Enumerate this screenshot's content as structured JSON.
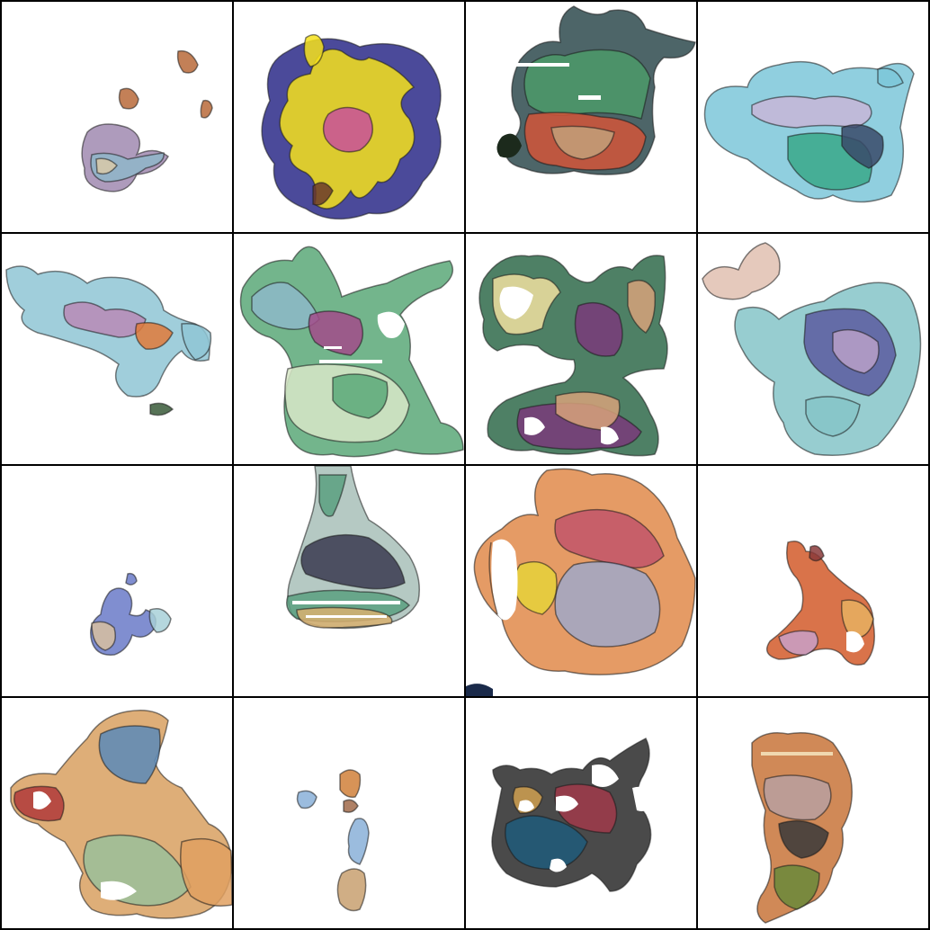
{
  "grid": {
    "rows": 4,
    "cols": 4,
    "background": "#ffffff",
    "divider_color": "#000000"
  },
  "tiles": [
    {
      "palette": [
        "#8fb6c9",
        "#d9c9a8",
        "#a08ab0",
        "#b86a3a"
      ]
    },
    {
      "palette": [
        "#f6e21c",
        "#2b2a88",
        "#c8509a",
        "#6a3a2a"
      ]
    },
    {
      "palette": [
        "#4c9a6a",
        "#d2553a",
        "#c3a07a",
        "#2e4a4e"
      ]
    },
    {
      "palette": [
        "#7cc7d9",
        "#3aa88a",
        "#c8b6d8",
        "#3a4a6a"
      ]
    },
    {
      "palette": [
        "#8fc5d5",
        "#b98ab6",
        "#e07a3a",
        "#3a5a3a"
      ]
    },
    {
      "palette": [
        "#5aa878",
        "#8db8c8",
        "#a24b8a",
        "#d8e8c8"
      ]
    },
    {
      "palette": [
        "#7a3a7a",
        "#2f6a4a",
        "#d7a27a",
        "#f1e0a0"
      ]
    },
    {
      "palette": [
        "#85c4c8",
        "#5a5aa0",
        "#b8a0c8",
        "#e0c0b0"
      ]
    },
    {
      "palette": [
        "#6a7ac8",
        "#d8c0a0",
        "#a8d0d8",
        "#c08ab0"
      ]
    },
    {
      "palette": [
        "#5aa080",
        "#3a3a50",
        "#a8c0b8",
        "#d8b070"
      ]
    },
    {
      "palette": [
        "#e08a4a",
        "#c2556a",
        "#a0a8c8",
        "#e6d23a"
      ]
    },
    {
      "palette": [
        "#d25a2a",
        "#c8a0c8",
        "#e6b060",
        "#8a3a3a"
      ]
    },
    {
      "palette": [
        "#b03a3a",
        "#5a8ab8",
        "#d8a060",
        "#9ac09a"
      ]
    },
    {
      "palette": [
        "#d0803a",
        "#8ab0d8",
        "#c8a070",
        "#a06a4a"
      ]
    },
    {
      "palette": [
        "#1f5a7a",
        "#a03a4a",
        "#d0a050",
        "#2a2a2a"
      ]
    },
    {
      "palette": [
        "#c8743a",
        "#6a8a3a",
        "#b8a0a0",
        "#3a3a3a"
      ]
    }
  ]
}
